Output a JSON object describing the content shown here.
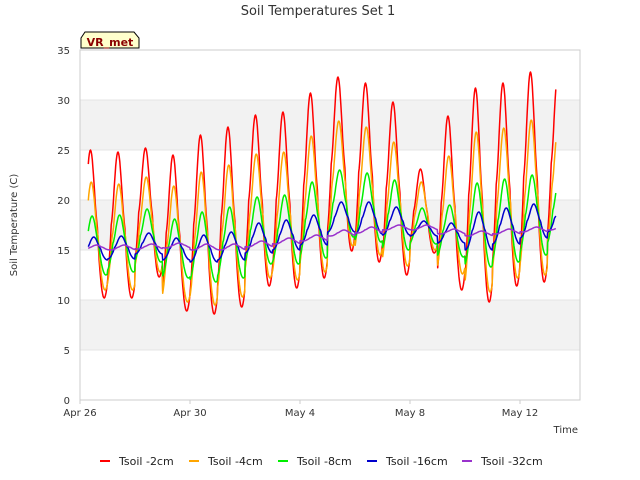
{
  "chart_data": {
    "type": "line",
    "title": "Soil Temperatures Set 1",
    "xlabel": "Time",
    "ylabel": "Soil Temperature (C)",
    "badge": "VR_met",
    "ylim": [
      0,
      35
    ],
    "yticks": [
      0,
      5,
      10,
      15,
      20,
      25,
      30,
      35
    ],
    "xlim": [
      "2024-04-26",
      "2024-05-14"
    ],
    "xticks": [
      {
        "date": "2024-04-26",
        "label": "Apr 26"
      },
      {
        "date": "2024-04-30",
        "label": "Apr 30"
      },
      {
        "date": "2024-05-04",
        "label": "May 4"
      },
      {
        "date": "2024-05-08",
        "label": "May 8"
      },
      {
        "date": "2024-05-12",
        "label": "May 12"
      }
    ],
    "grid": "alternating horizontal bands",
    "legend_position": "bottom",
    "series": [
      {
        "name": "Tsoil -2cm",
        "color": "#ff0000",
        "daily_min": [
          10.2,
          10.2,
          12.3,
          8.9,
          8.6,
          9.3,
          11.4,
          11.2,
          12.2,
          14.9,
          13.8,
          12.5,
          14.7,
          11.0,
          9.8,
          11.4,
          11.8,
          14.5
        ],
        "daily_max": [
          25.0,
          24.8,
          25.2,
          24.5,
          26.5,
          27.3,
          28.5,
          28.8,
          30.7,
          32.3,
          31.7,
          29.8,
          23.1,
          28.4,
          31.2,
          31.7,
          32.8,
          32.8
        ]
      },
      {
        "name": "Tsoil -4cm",
        "color": "#ffa500",
        "daily_min": [
          11.0,
          11.0,
          12.8,
          9.8,
          9.5,
          10.3,
          12.2,
          12.0,
          12.8,
          15.4,
          14.5,
          13.4,
          15.0,
          12.6,
          10.8,
          12.2,
          12.5,
          15.0
        ],
        "daily_max": [
          21.8,
          21.6,
          22.3,
          21.4,
          22.8,
          23.5,
          24.6,
          24.8,
          26.4,
          27.9,
          27.3,
          25.8,
          21.8,
          24.4,
          26.8,
          27.2,
          28.0,
          28.0
        ]
      },
      {
        "name": "Tsoil -8cm",
        "color": "#00ee00",
        "daily_min": [
          12.5,
          12.8,
          13.8,
          12.2,
          11.8,
          12.2,
          13.6,
          13.6,
          14.2,
          16.3,
          15.8,
          15.0,
          15.6,
          14.3,
          13.3,
          13.8,
          14.5,
          15.5
        ],
        "daily_max": [
          18.4,
          18.5,
          19.1,
          18.1,
          18.8,
          19.3,
          20.3,
          20.5,
          21.8,
          23.0,
          22.7,
          22.0,
          19.2,
          19.5,
          21.7,
          22.1,
          22.5,
          22.5
        ]
      },
      {
        "name": "Tsoil -16cm",
        "color": "#0000cc",
        "daily_min": [
          14.0,
          14.1,
          14.6,
          14.0,
          13.8,
          14.0,
          14.7,
          15.0,
          15.5,
          16.8,
          16.6,
          16.5,
          16.4,
          15.7,
          15.0,
          15.6,
          16.2,
          16.8
        ],
        "daily_max": [
          16.3,
          16.4,
          16.7,
          16.2,
          16.5,
          16.8,
          17.7,
          18.0,
          18.5,
          19.8,
          19.8,
          19.3,
          17.9,
          17.7,
          18.8,
          19.2,
          19.6,
          19.6
        ]
      },
      {
        "name": "Tsoil -32cm",
        "color": "#9932cc",
        "daily_min": [
          15.0,
          15.0,
          15.1,
          15.2,
          15.0,
          15.0,
          15.3,
          15.6,
          15.9,
          16.4,
          16.7,
          17.0,
          17.0,
          16.6,
          16.4,
          16.6,
          16.8,
          17.0
        ],
        "daily_max": [
          15.5,
          15.5,
          15.6,
          15.7,
          15.6,
          15.6,
          15.9,
          16.2,
          16.5,
          17.0,
          17.3,
          17.5,
          17.5,
          17.1,
          16.9,
          17.1,
          17.3,
          17.5
        ]
      }
    ]
  }
}
